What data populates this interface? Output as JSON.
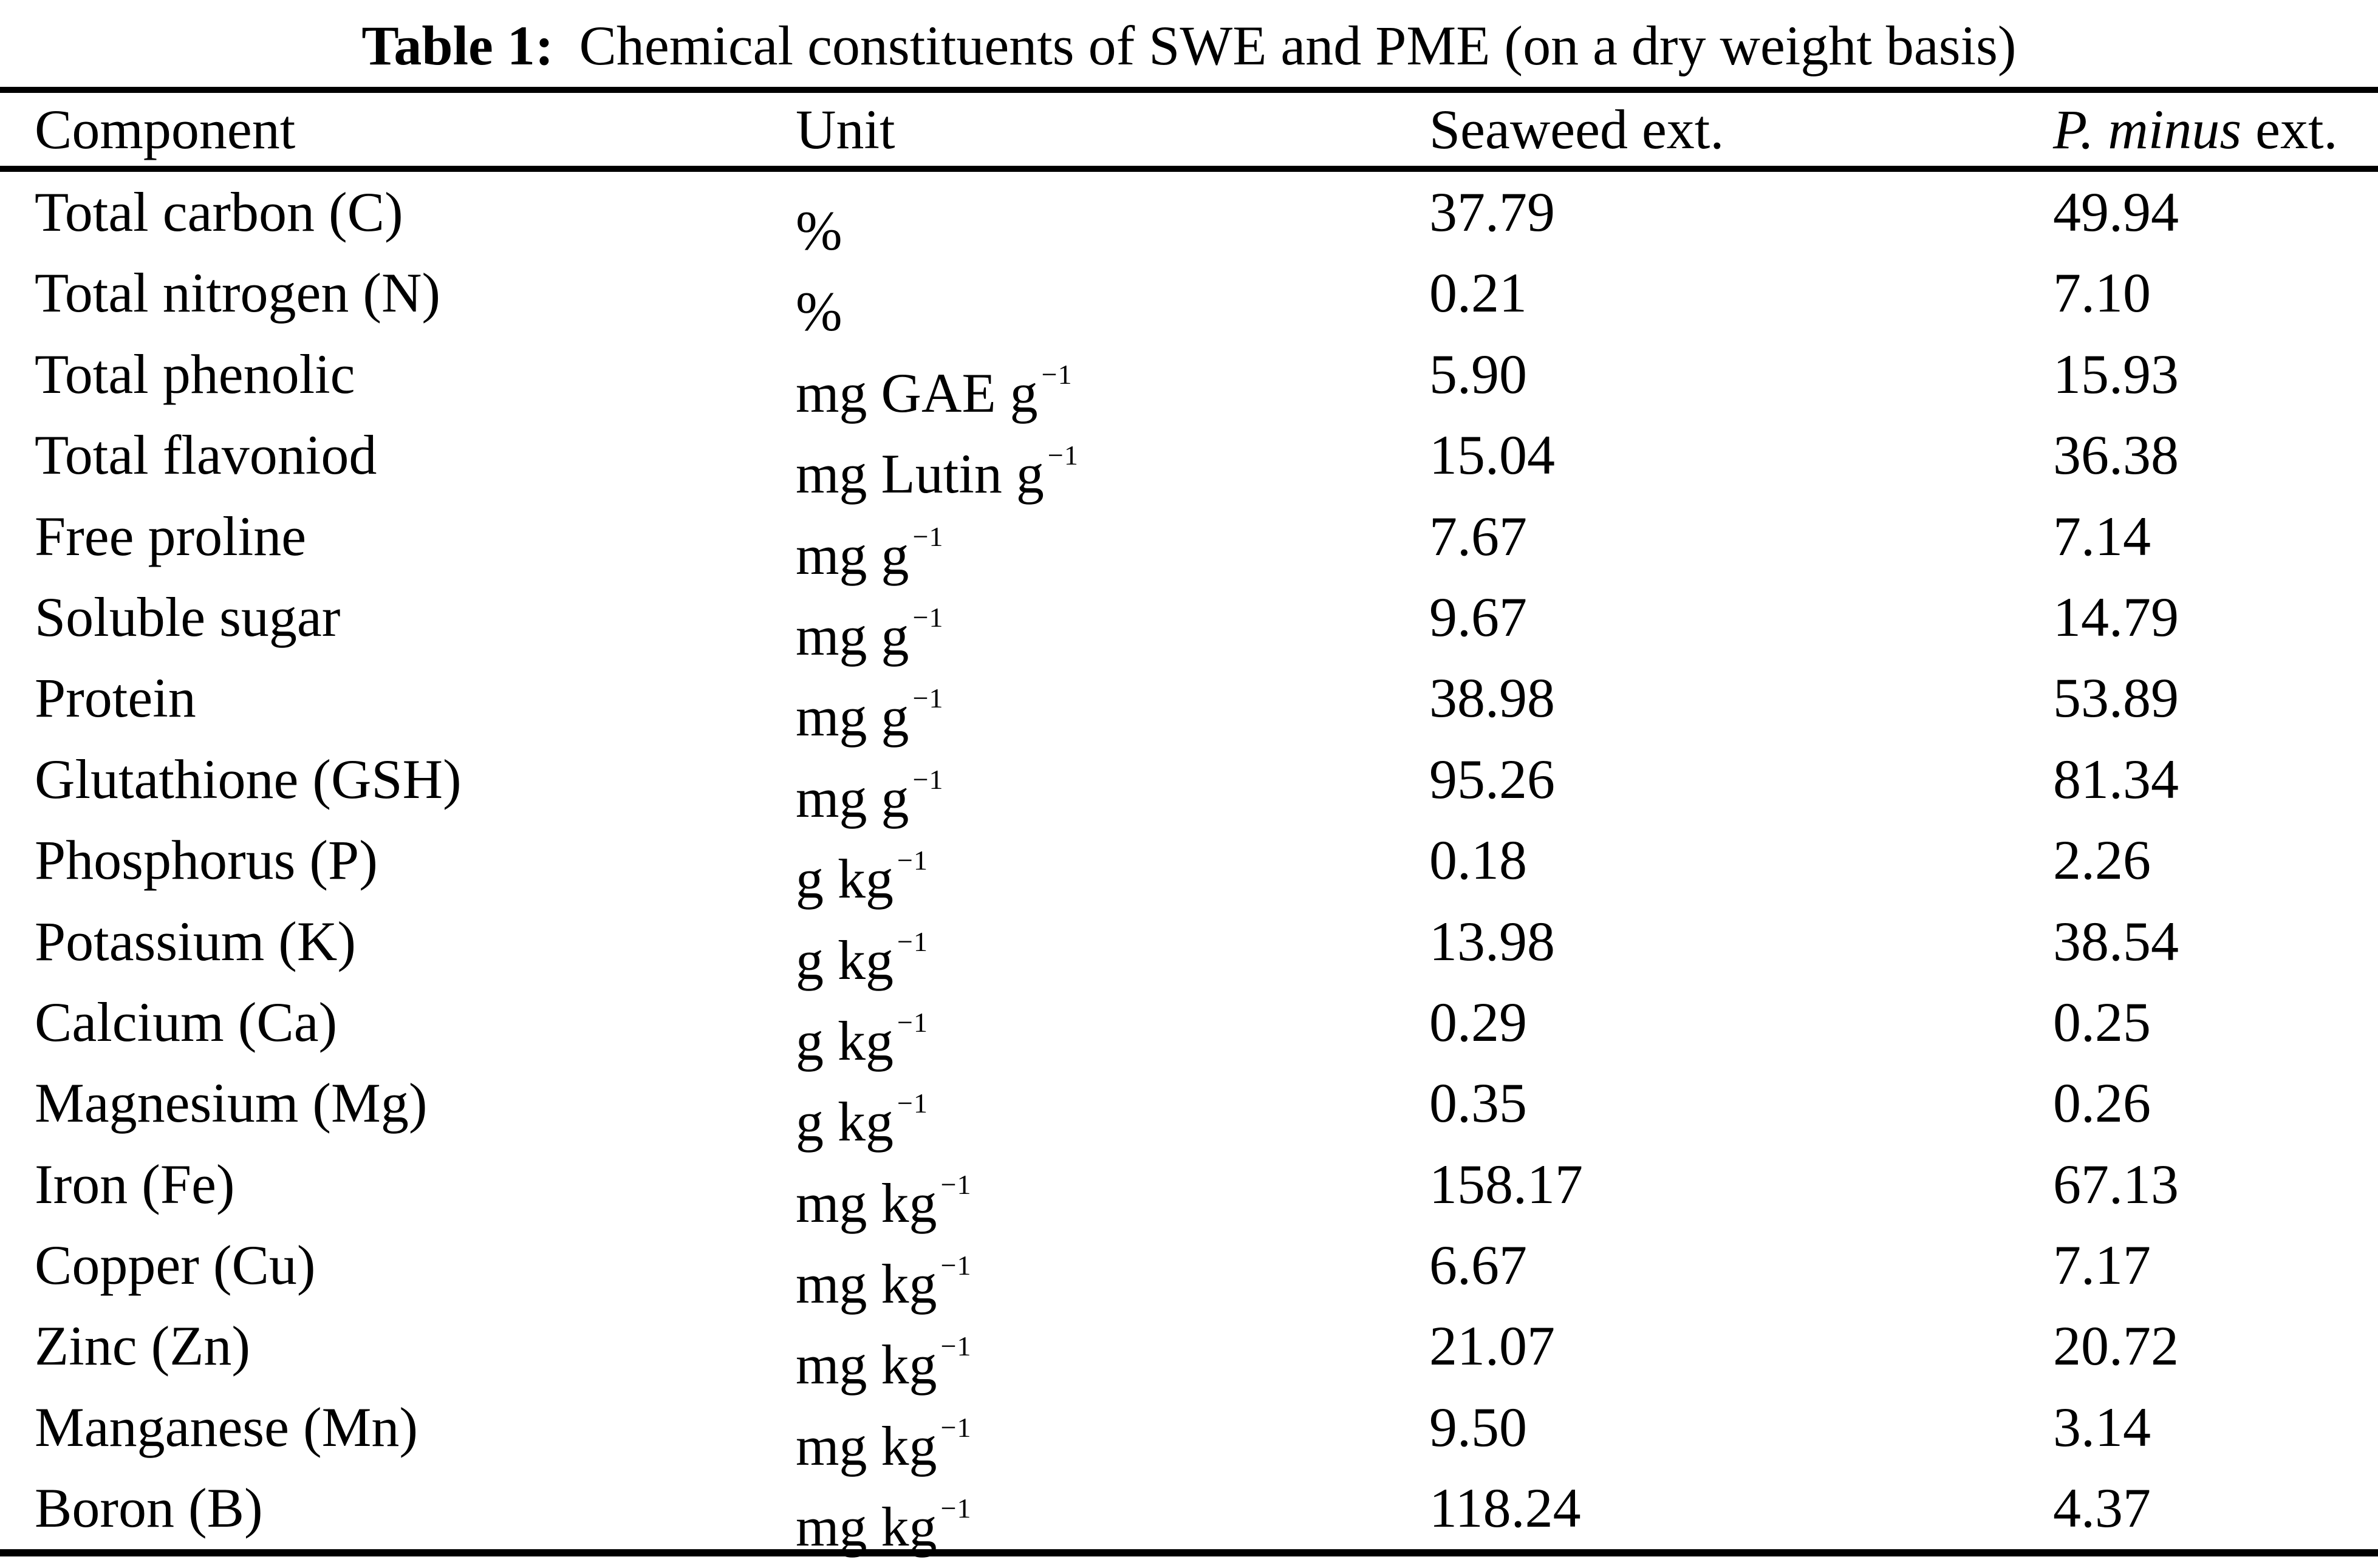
{
  "page": {
    "background_color": "#ffffff",
    "text_color": "#000000"
  },
  "caption": {
    "label": "Table 1:",
    "text": "Chemical constituents of SWE and PME (on a dry weight basis)"
  },
  "table": {
    "header": {
      "component": "Component",
      "unit": "Unit",
      "seaweed": "Seaweed ext.",
      "pminus_species": "P. minus",
      "pminus_suffix": " ext."
    },
    "rows": [
      {
        "component": "Total carbon (C)",
        "unit": "%",
        "unit_sup": "",
        "seaweed": "37.79",
        "pminus": "49.94"
      },
      {
        "component": "Total nitrogen (N)",
        "unit": "%",
        "unit_sup": "",
        "seaweed": "0.21",
        "pminus": "7.10"
      },
      {
        "component": "Total phenolic",
        "unit": "mg GAE g",
        "unit_sup": "−1",
        "seaweed": "5.90",
        "pminus": "15.93"
      },
      {
        "component": "Total flavoniod",
        "unit": "mg Lutin g",
        "unit_sup": "−1",
        "seaweed": "15.04",
        "pminus": "36.38"
      },
      {
        "component": "Free proline",
        "unit": "mg g",
        "unit_sup": "−1",
        "seaweed": "7.67",
        "pminus": "7.14"
      },
      {
        "component": "Soluble sugar",
        "unit": "mg g",
        "unit_sup": "−1",
        "seaweed": "9.67",
        "pminus": "14.79"
      },
      {
        "component": "Protein",
        "unit": "mg g",
        "unit_sup": "−1",
        "seaweed": "38.98",
        "pminus": "53.89"
      },
      {
        "component": "Glutathione (GSH)",
        "unit": "mg g",
        "unit_sup": "−1",
        "seaweed": "95.26",
        "pminus": "81.34"
      },
      {
        "component": "Phosphorus (P)",
        "unit": "g kg",
        "unit_sup": "−1",
        "seaweed": "0.18",
        "pminus": "2.26"
      },
      {
        "component": "Potassium (K)",
        "unit": "g kg",
        "unit_sup": "−1",
        "seaweed": "13.98",
        "pminus": "38.54"
      },
      {
        "component": "Calcium (Ca)",
        "unit": "g kg",
        "unit_sup": "−1",
        "seaweed": "0.29",
        "pminus": "0.25"
      },
      {
        "component": "Magnesium (Mg)",
        "unit": "g kg",
        "unit_sup": "−1",
        "seaweed": "0.35",
        "pminus": "0.26"
      },
      {
        "component": "Iron (Fe)",
        "unit": "mg kg",
        "unit_sup": "−1",
        "seaweed": "158.17",
        "pminus": "67.13"
      },
      {
        "component": "Copper (Cu)",
        "unit": "mg kg",
        "unit_sup": "−1",
        "seaweed": "6.67",
        "pminus": "7.17"
      },
      {
        "component": "Zinc (Zn)",
        "unit": "mg kg",
        "unit_sup": "−1",
        "seaweed": "21.07",
        "pminus": "20.72"
      },
      {
        "component": "Manganese (Mn)",
        "unit": "mg kg",
        "unit_sup": "−1",
        "seaweed": "9.50",
        "pminus": "3.14"
      },
      {
        "component": "Boron (B)",
        "unit": "mg kg",
        "unit_sup": "−1",
        "seaweed": "118.24",
        "pminus": "4.37"
      }
    ]
  }
}
